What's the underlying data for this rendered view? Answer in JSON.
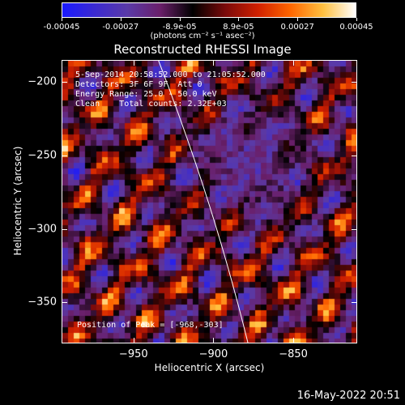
{
  "colorbar": {
    "tick_labels": [
      "-0.00045",
      "-0.00027",
      "-8.9e-05",
      "8.9e-05",
      "0.00027",
      "0.00045"
    ],
    "units": "(photons cm⁻² s⁻¹ asec⁻²)",
    "colors": [
      "#1a1aff",
      "#3b2ad0",
      "#5a3aa8",
      "#6a1f6a",
      "#000000",
      "#7a0a0a",
      "#d02000",
      "#ff6600",
      "#ffc040",
      "#ffffff"
    ]
  },
  "plot": {
    "title": "Reconstructed RHESSI Image",
    "info_lines": [
      "5-Sep-2014 20:58:52.000 to 21:05:52.000",
      "Detectors: 3F 6F 9F  Att 0",
      "Energy Range: 25.0 - 50.0 keV",
      "Clean    Total counts: 2.32E+03"
    ],
    "peak_text": "Position of Peak = [-968,-303]"
  },
  "chart_data": {
    "type": "heatmap",
    "title": "Reconstructed RHESSI Image",
    "xlabel": "Heliocentric X (arcsec)",
    "ylabel": "Heliocentric Y (arcsec)",
    "xlim": [
      -995,
      -810
    ],
    "ylim": [
      -378,
      -185
    ],
    "xticks": [
      -950,
      -900,
      -850
    ],
    "yticks": [
      -200,
      -250,
      -300,
      -350
    ],
    "xtick_labels": [
      "−950",
      "−900",
      "−850"
    ],
    "ytick_labels": [
      "−200",
      "−250",
      "−300",
      "−350"
    ],
    "zlim": [
      -0.00045,
      0.00045
    ],
    "peak_position": [
      -968,
      -303
    ]
  },
  "footer": {
    "timestamp": "16-May-2022 20:51"
  }
}
